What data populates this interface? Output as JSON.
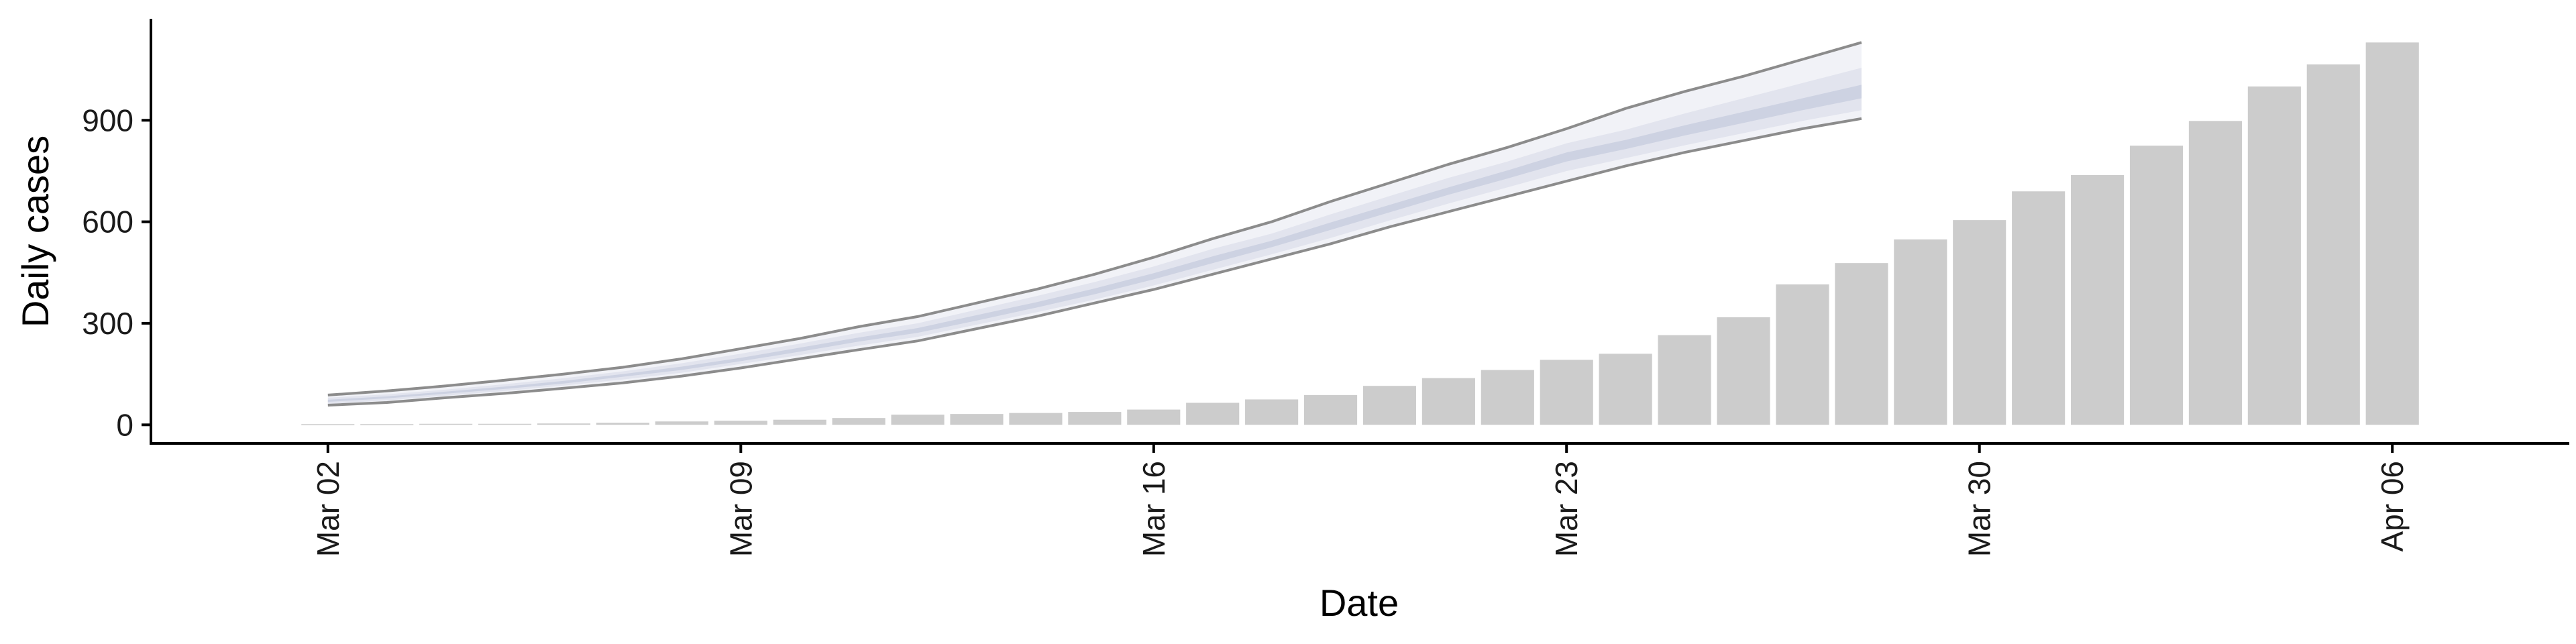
{
  "chart_data": {
    "type": "bar",
    "xlabel": "Date",
    "ylabel": "Daily cases",
    "x_ticks": [
      "Mar 02",
      "Mar 09",
      "Mar 16",
      "Mar 23",
      "Mar 30",
      "Apr 06"
    ],
    "y_ticks": [
      0,
      300,
      600,
      900
    ],
    "ylim": [
      -55,
      1200
    ],
    "xlim": [
      "2020-02-28",
      "2020-04-09"
    ],
    "grid": false,
    "bars": {
      "dates": [
        "2020-03-02",
        "2020-03-03",
        "2020-03-04",
        "2020-03-05",
        "2020-03-06",
        "2020-03-07",
        "2020-03-08",
        "2020-03-09",
        "2020-03-10",
        "2020-03-11",
        "2020-03-12",
        "2020-03-13",
        "2020-03-14",
        "2020-03-15",
        "2020-03-16",
        "2020-03-17",
        "2020-03-18",
        "2020-03-19",
        "2020-03-20",
        "2020-03-21",
        "2020-03-22",
        "2020-03-23",
        "2020-03-24",
        "2020-03-25",
        "2020-03-26",
        "2020-03-27",
        "2020-03-28",
        "2020-03-29",
        "2020-03-30",
        "2020-03-31",
        "2020-04-01",
        "2020-04-02",
        "2020-04-03",
        "2020-04-04",
        "2020-04-05",
        "2020-04-06"
      ],
      "values": [
        2,
        2,
        3,
        3,
        4,
        6,
        10,
        12,
        15,
        20,
        30,
        32,
        35,
        38,
        45,
        65,
        75,
        88,
        115,
        138,
        162,
        192,
        210,
        265,
        318,
        415,
        478,
        548,
        605,
        690,
        738,
        825,
        898,
        1000,
        1065,
        1130
      ],
      "color": "#cccccc"
    },
    "nowcast": {
      "dates": [
        "2020-03-02",
        "2020-03-03",
        "2020-03-04",
        "2020-03-05",
        "2020-03-06",
        "2020-03-07",
        "2020-03-08",
        "2020-03-09",
        "2020-03-10",
        "2020-03-11",
        "2020-03-12",
        "2020-03-13",
        "2020-03-14",
        "2020-03-15",
        "2020-03-16",
        "2020-03-17",
        "2020-03-18",
        "2020-03-19",
        "2020-03-20",
        "2020-03-21",
        "2020-03-22",
        "2020-03-23",
        "2020-03-24",
        "2020-03-25",
        "2020-03-26",
        "2020-03-27",
        "2020-03-28"
      ],
      "upper_90": [
        88,
        100,
        115,
        132,
        150,
        170,
        195,
        225,
        255,
        290,
        320,
        360,
        400,
        445,
        495,
        550,
        600,
        660,
        715,
        770,
        820,
        875,
        935,
        985,
        1030,
        1080,
        1130
      ],
      "upper_50": [
        80,
        90,
        104,
        120,
        138,
        158,
        182,
        210,
        240,
        272,
        300,
        340,
        380,
        422,
        468,
        520,
        565,
        622,
        676,
        730,
        778,
        832,
        872,
        920,
        965,
        1010,
        1055
      ],
      "upper_20": [
        74,
        84,
        98,
        113,
        130,
        150,
        172,
        198,
        228,
        258,
        286,
        324,
        362,
        403,
        448,
        498,
        544,
        598,
        650,
        702,
        752,
        805,
        842,
        885,
        925,
        965,
        1005
      ],
      "lower_20": [
        68,
        78,
        92,
        106,
        122,
        142,
        162,
        188,
        216,
        246,
        272,
        308,
        346,
        386,
        430,
        478,
        525,
        576,
        628,
        680,
        728,
        778,
        815,
        855,
        892,
        930,
        965
      ],
      "lower_50": [
        62,
        72,
        86,
        100,
        116,
        134,
        154,
        180,
        206,
        234,
        260,
        296,
        332,
        370,
        412,
        458,
        504,
        552,
        604,
        654,
        702,
        750,
        788,
        826,
        862,
        898,
        930
      ],
      "lower_90": [
        58,
        66,
        80,
        93,
        108,
        124,
        144,
        168,
        195,
        222,
        248,
        284,
        320,
        360,
        400,
        445,
        490,
        535,
        585,
        630,
        675,
        720,
        765,
        805,
        840,
        875,
        905
      ],
      "line_color": "#8c8c8c",
      "band_colors": [
        "#f1f2f7",
        "#e2e4ee",
        "#cdd2e2"
      ]
    }
  }
}
